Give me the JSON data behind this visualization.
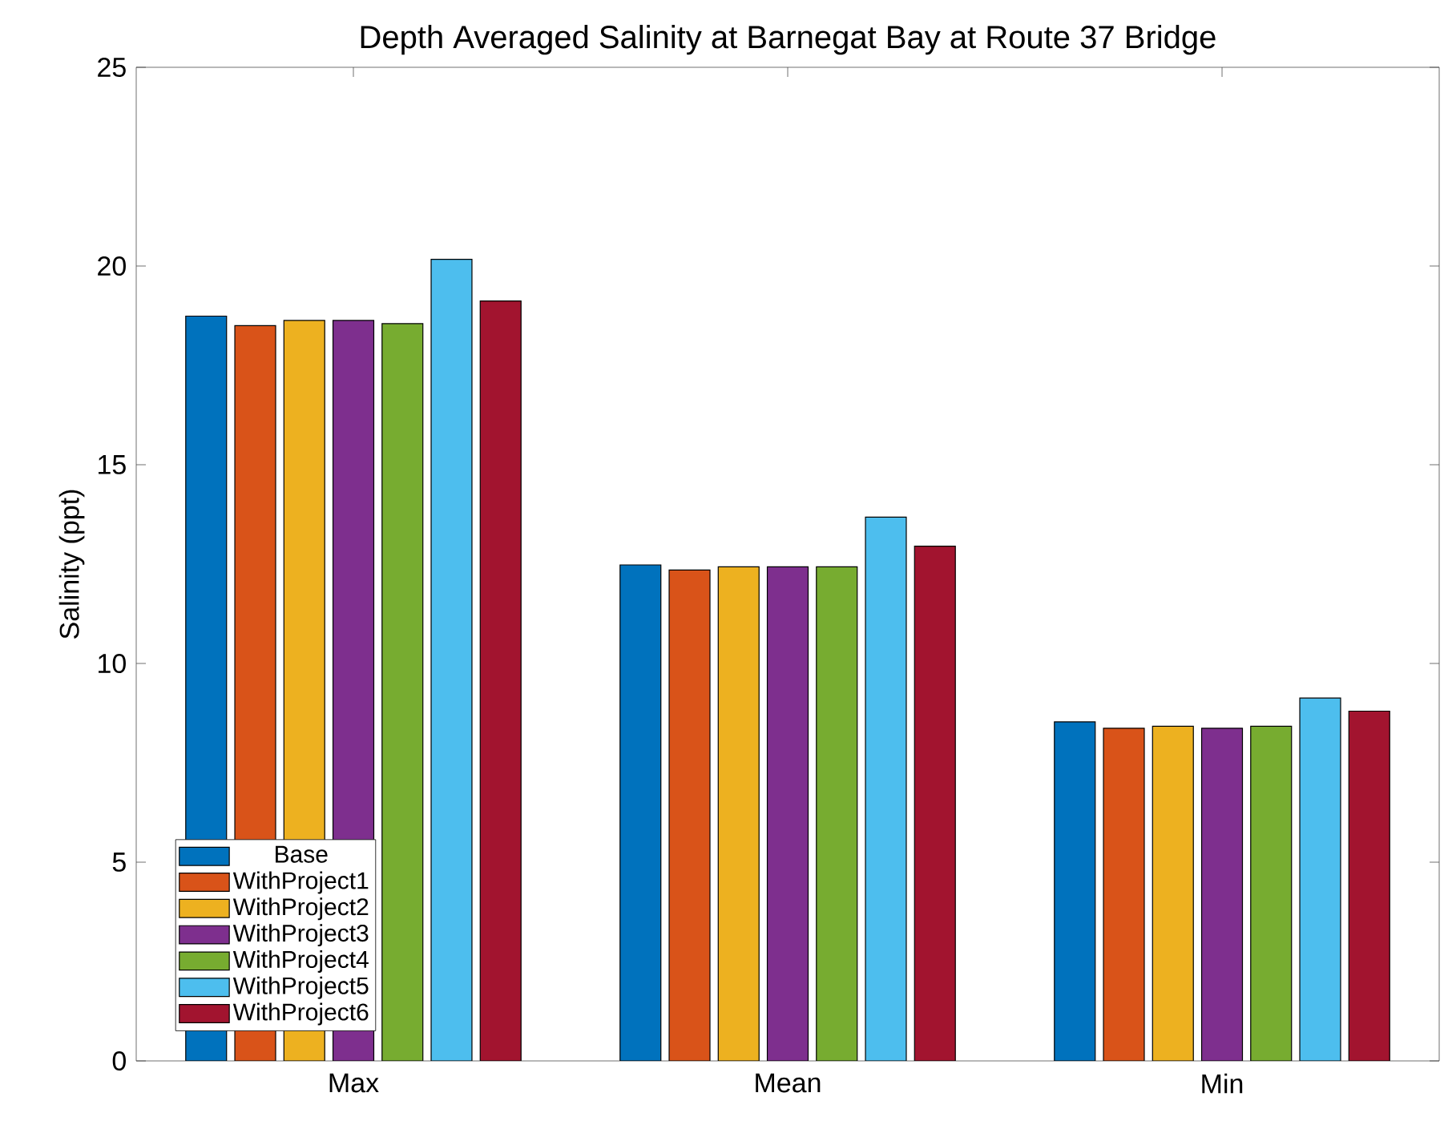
{
  "chart_data": {
    "type": "bar",
    "title": "Depth Averaged Salinity at Barnegat Bay at Route 37 Bridge",
    "ylabel": "Salinity (ppt)",
    "categories": [
      "Max",
      "Mean",
      "Min"
    ],
    "series": [
      {
        "name": "Base",
        "color": "#0072bd",
        "values": [
          18.74,
          12.48,
          8.53
        ]
      },
      {
        "name": "WithProject1",
        "color": "#d95319",
        "values": [
          18.5,
          12.35,
          8.37
        ]
      },
      {
        "name": "WithProject2",
        "color": "#edb120",
        "values": [
          18.63,
          12.43,
          8.42
        ]
      },
      {
        "name": "WithProject3",
        "color": "#7e2f8e",
        "values": [
          18.63,
          12.43,
          8.37
        ]
      },
      {
        "name": "WithProject4",
        "color": "#77ac30",
        "values": [
          18.55,
          12.43,
          8.42
        ]
      },
      {
        "name": "WithProject5",
        "color": "#4dbeee",
        "values": [
          20.17,
          13.68,
          9.13
        ]
      },
      {
        "name": "WithProject6",
        "color": "#a2142f",
        "values": [
          19.12,
          12.95,
          8.8
        ]
      }
    ],
    "ylim": [
      0,
      25
    ],
    "yticks": [
      0,
      5,
      10,
      15,
      20,
      25
    ],
    "legend": "bottom left"
  }
}
